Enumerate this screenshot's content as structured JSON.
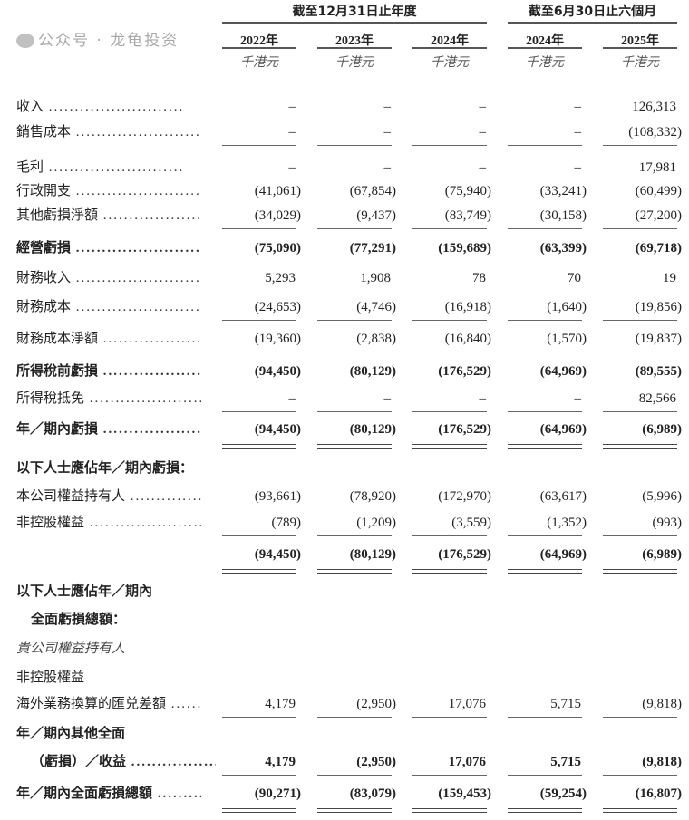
{
  "header": {
    "group_annual": "截至12月31日止年度",
    "group_interim": "截至6月30日止六個月",
    "years": [
      "2022年",
      "2023年",
      "2024年",
      "2024年",
      "2025年"
    ],
    "unit": "千港元"
  },
  "rows": [
    {
      "label": "收入",
      "style": "",
      "values": [
        "–",
        "–",
        "–",
        "–",
        "126,313"
      ],
      "rule": ""
    },
    {
      "label": "銷售成本",
      "style": "",
      "values": [
        "–",
        "–",
        "–",
        "–",
        "(108,332)"
      ],
      "rule": "single"
    },
    {
      "label": "毛利",
      "style": "",
      "values": [
        "–",
        "–",
        "–",
        "–",
        "17,981"
      ],
      "rule": ""
    },
    {
      "label": "行政開支",
      "style": "",
      "values": [
        "(41,061)",
        "(67,854)",
        "(75,940)",
        "(33,241)",
        "(60,499)"
      ],
      "rule": ""
    },
    {
      "label": "其他虧損淨額",
      "style": "",
      "values": [
        "(34,029)",
        "(9,437)",
        "(83,749)",
        "(30,158)",
        "(27,200)"
      ],
      "rule": "single"
    },
    {
      "label": "經營虧損",
      "style": "b",
      "values": [
        "(75,090)",
        "(77,291)",
        "(159,689)",
        "(63,399)",
        "(69,718)"
      ],
      "rule": ""
    },
    {
      "label": "財務收入",
      "style": "",
      "values": [
        "5,293",
        "1,908",
        "78",
        "70",
        "19"
      ],
      "rule": ""
    },
    {
      "label": "財務成本",
      "style": "",
      "values": [
        "(24,653)",
        "(4,746)",
        "(16,918)",
        "(1,640)",
        "(19,856)"
      ],
      "rule": "single"
    },
    {
      "label": "財務成本淨額",
      "style": "",
      "values": [
        "(19,360)",
        "(2,838)",
        "(16,840)",
        "(1,570)",
        "(19,837)"
      ],
      "rule": "single"
    },
    {
      "label": "所得稅前虧損",
      "style": "b",
      "values": [
        "(94,450)",
        "(80,129)",
        "(176,529)",
        "(64,969)",
        "(89,555)"
      ],
      "rule": ""
    },
    {
      "label": "所得稅抵免",
      "style": "",
      "values": [
        "–",
        "–",
        "–",
        "–",
        "82,566"
      ],
      "rule": "single"
    },
    {
      "label": "年／期內虧損",
      "style": "b",
      "values": [
        "(94,450)",
        "(80,129)",
        "(176,529)",
        "(64,969)",
        "(6,989)"
      ],
      "rule": "double"
    },
    {
      "label": "以下人士應佔年／期內虧損：",
      "style": "b nd",
      "values": [],
      "rule": ""
    },
    {
      "label": "本公司權益持有人",
      "style": "",
      "values": [
        "(93,661)",
        "(78,920)",
        "(172,970)",
        "(63,617)",
        "(5,996)"
      ],
      "rule": ""
    },
    {
      "label": "非控股權益",
      "style": "",
      "values": [
        "(789)",
        "(1,209)",
        "(3,559)",
        "(1,352)",
        "(993)"
      ],
      "rule": "single"
    },
    {
      "label": "",
      "style": "b nd",
      "values": [
        "(94,450)",
        "(80,129)",
        "(176,529)",
        "(64,969)",
        "(6,989)"
      ],
      "rule": "double"
    },
    {
      "label": "以下人士應佔年／期內",
      "style": "b nd",
      "values": [],
      "rule": ""
    },
    {
      "label": "全面虧損總額：",
      "style": "b nd ind",
      "values": [],
      "rule": ""
    },
    {
      "label": "貴公司權益持有人",
      "style": "i nd",
      "values": [],
      "rule": ""
    },
    {
      "label": "非控股權益",
      "style": "nd",
      "values": [],
      "rule": ""
    },
    {
      "label": "海外業務換算的匯兑差額",
      "style": "",
      "values": [
        "4,179",
        "(2,950)",
        "17,076",
        "5,715",
        "(9,818)"
      ],
      "rule": "single"
    },
    {
      "label": "年／期內其他全面",
      "style": "b nd",
      "values": [],
      "rule": ""
    },
    {
      "label": "（虧損）／收益",
      "style": "b ind",
      "values": [
        "4,179",
        "(2,950)",
        "17,076",
        "5,715",
        "(9,818)"
      ],
      "rule": "single"
    },
    {
      "label": "年／期內全面虧損總額",
      "style": "b",
      "values": [
        "(90,271)",
        "(83,079)",
        "(159,453)",
        "(59,254)",
        "(16,807)"
      ],
      "rule": "double"
    }
  ],
  "watermark": "公众号 · 龙龟投资"
}
